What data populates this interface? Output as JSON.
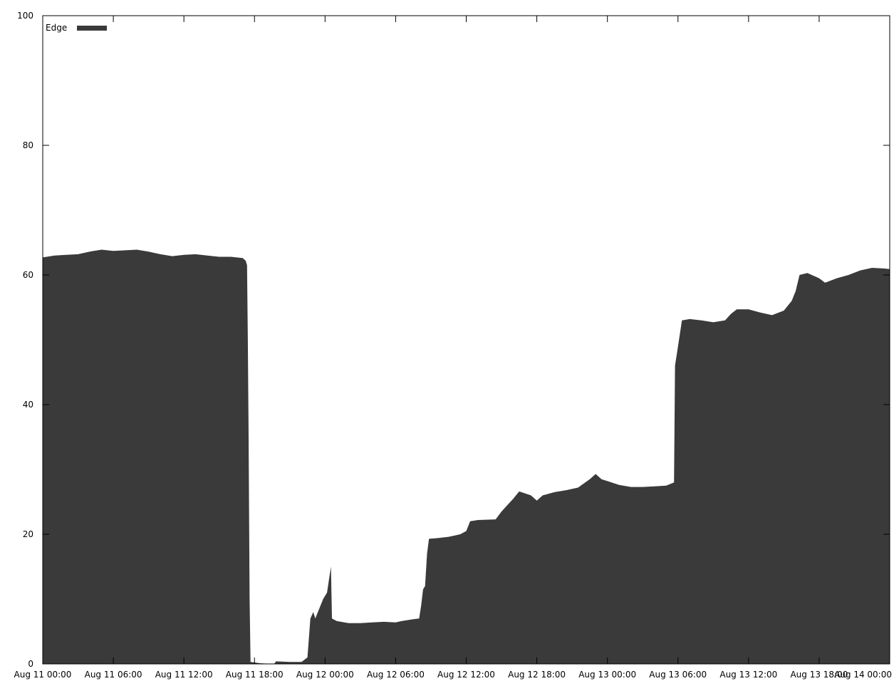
{
  "chart_data": {
    "type": "area",
    "title": "",
    "xlabel": "",
    "ylabel": "",
    "xlim": [
      "Aug 11 00:00",
      "Aug 14 00:00"
    ],
    "ylim": [
      0,
      100
    ],
    "grid": false,
    "legend_position": "top-left",
    "y_ticks": [
      0,
      20,
      40,
      60,
      80,
      100
    ],
    "x_tick_labels": [
      "Aug 11 00:00",
      "Aug 11 06:00",
      "Aug 11 12:00",
      "Aug 11 18:00",
      "Aug 12 00:00",
      "Aug 12 06:00",
      "Aug 12 12:00",
      "Aug 12 18:00",
      "Aug 13 00:00",
      "Aug 13 06:00",
      "Aug 13 12:00",
      "Aug 13 18:00",
      "Aug 14 00:00"
    ],
    "series": [
      {
        "name": "Edge",
        "color": "#3a3a3a",
        "points": [
          [
            "Aug 11 00:00",
            62.7
          ],
          [
            "Aug 11 01:00",
            63.0
          ],
          [
            "Aug 11 02:00",
            63.1
          ],
          [
            "Aug 11 03:00",
            63.2
          ],
          [
            "Aug 11 04:00",
            63.6
          ],
          [
            "Aug 11 05:00",
            63.9
          ],
          [
            "Aug 11 06:00",
            63.7
          ],
          [
            "Aug 11 07:00",
            63.8
          ],
          [
            "Aug 11 08:00",
            63.9
          ],
          [
            "Aug 11 09:00",
            63.6
          ],
          [
            "Aug 11 10:00",
            63.2
          ],
          [
            "Aug 11 11:00",
            62.9
          ],
          [
            "Aug 11 12:00",
            63.1
          ],
          [
            "Aug 11 13:00",
            63.2
          ],
          [
            "Aug 11 14:00",
            63.0
          ],
          [
            "Aug 11 15:00",
            62.8
          ],
          [
            "Aug 11 16:00",
            62.8
          ],
          [
            "Aug 11 17:00",
            62.6
          ],
          [
            "Aug 11 17:15",
            62.2
          ],
          [
            "Aug 11 17:22",
            61.5
          ],
          [
            "Aug 11 17:26",
            50.0
          ],
          [
            "Aug 11 17:30",
            35.0
          ],
          [
            "Aug 11 17:35",
            10.0
          ],
          [
            "Aug 11 17:40",
            0.3
          ],
          [
            "Aug 11 18:30",
            0.1
          ],
          [
            "Aug 11 19:40",
            0.0
          ],
          [
            "Aug 11 19:50",
            0.4
          ],
          [
            "Aug 11 21:00",
            0.3
          ],
          [
            "Aug 11 22:00",
            0.3
          ],
          [
            "Aug 11 22:30",
            1.0
          ],
          [
            "Aug 11 22:45",
            7.0
          ],
          [
            "Aug 11 23:00",
            8.0
          ],
          [
            "Aug 11 23:10",
            7.0
          ],
          [
            "Aug 11 23:30",
            8.5
          ],
          [
            "Aug 11 23:50",
            10.0
          ],
          [
            "Aug 12 00:10",
            11.0
          ],
          [
            "Aug 12 00:20",
            13.0
          ],
          [
            "Aug 12 00:30",
            15.0
          ],
          [
            "Aug 12 00:35",
            7.0
          ],
          [
            "Aug 12 01:00",
            6.6
          ],
          [
            "Aug 12 02:00",
            6.3
          ],
          [
            "Aug 12 03:00",
            6.3
          ],
          [
            "Aug 12 04:00",
            6.4
          ],
          [
            "Aug 12 05:00",
            6.5
          ],
          [
            "Aug 12 06:00",
            6.4
          ],
          [
            "Aug 12 06:30",
            6.6
          ],
          [
            "Aug 12 07:30",
            6.9
          ],
          [
            "Aug 12 08:00",
            7.0
          ],
          [
            "Aug 12 08:10",
            9.0
          ],
          [
            "Aug 12 08:20",
            11.5
          ],
          [
            "Aug 12 08:30",
            12.0
          ],
          [
            "Aug 12 08:40",
            17.0
          ],
          [
            "Aug 12 08:50",
            19.3
          ],
          [
            "Aug 12 09:30",
            19.4
          ],
          [
            "Aug 12 10:30",
            19.6
          ],
          [
            "Aug 12 11:30",
            20.0
          ],
          [
            "Aug 12 12:00",
            20.5
          ],
          [
            "Aug 12 12:20",
            22.0
          ],
          [
            "Aug 12 13:00",
            22.2
          ],
          [
            "Aug 12 14:30",
            22.3
          ],
          [
            "Aug 12 15:00",
            23.5
          ],
          [
            "Aug 12 15:30",
            24.5
          ],
          [
            "Aug 12 16:00",
            25.5
          ],
          [
            "Aug 12 16:30",
            26.6
          ],
          [
            "Aug 12 17:30",
            26.0
          ],
          [
            "Aug 12 18:00",
            25.2
          ],
          [
            "Aug 12 18:30",
            26.0
          ],
          [
            "Aug 12 19:30",
            26.5
          ],
          [
            "Aug 12 20:30",
            26.8
          ],
          [
            "Aug 12 21:30",
            27.2
          ],
          [
            "Aug 12 22:30",
            28.5
          ],
          [
            "Aug 12 23:00",
            29.3
          ],
          [
            "Aug 12 23:30",
            28.5
          ],
          [
            "Aug 13 00:00",
            28.2
          ],
          [
            "Aug 13 01:00",
            27.6
          ],
          [
            "Aug 13 02:00",
            27.3
          ],
          [
            "Aug 13 03:00",
            27.3
          ],
          [
            "Aug 13 04:00",
            27.4
          ],
          [
            "Aug 13 05:00",
            27.5
          ],
          [
            "Aug 13 05:40",
            28.0
          ],
          [
            "Aug 13 05:45",
            46.0
          ],
          [
            "Aug 13 06:00",
            49.0
          ],
          [
            "Aug 13 06:20",
            53.0
          ],
          [
            "Aug 13 07:00",
            53.2
          ],
          [
            "Aug 13 08:00",
            53.0
          ],
          [
            "Aug 13 09:00",
            52.7
          ],
          [
            "Aug 13 10:00",
            53.0
          ],
          [
            "Aug 13 10:30",
            54.0
          ],
          [
            "Aug 13 11:00",
            54.7
          ],
          [
            "Aug 13 12:00",
            54.7
          ],
          [
            "Aug 13 13:00",
            54.2
          ],
          [
            "Aug 13 14:00",
            53.8
          ],
          [
            "Aug 13 15:00",
            54.5
          ],
          [
            "Aug 13 15:40",
            56.0
          ],
          [
            "Aug 13 16:00",
            57.5
          ],
          [
            "Aug 13 16:20",
            60.0
          ],
          [
            "Aug 13 17:00",
            60.3
          ],
          [
            "Aug 13 18:00",
            59.5
          ],
          [
            "Aug 13 18:30",
            58.8
          ],
          [
            "Aug 13 19:30",
            59.5
          ],
          [
            "Aug 13 20:30",
            60.0
          ],
          [
            "Aug 13 21:30",
            60.7
          ],
          [
            "Aug 13 22:30",
            61.1
          ],
          [
            "Aug 13 23:30",
            61.0
          ],
          [
            "Aug 14 00:00",
            60.9
          ]
        ]
      }
    ]
  }
}
